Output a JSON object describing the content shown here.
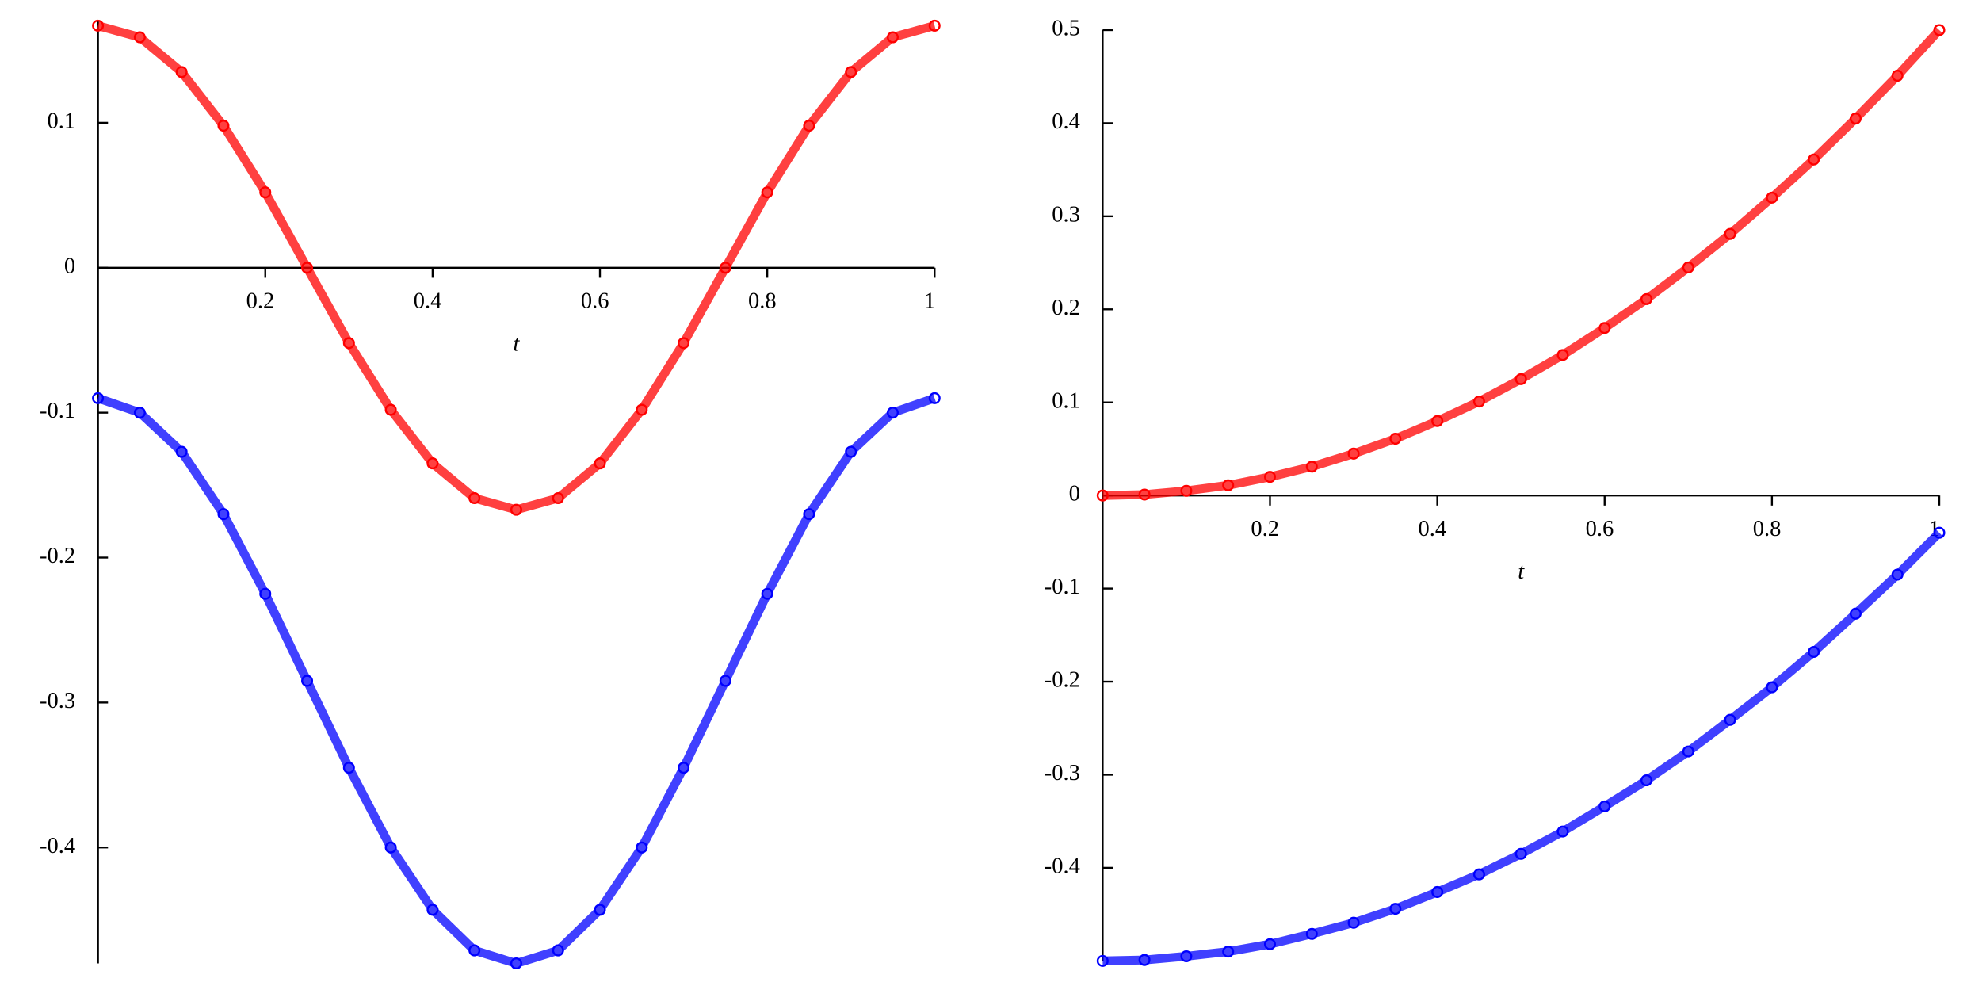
{
  "chart_data": [
    {
      "type": "line",
      "x_label": "t",
      "x": [
        0,
        0.05,
        0.1,
        0.15,
        0.2,
        0.25,
        0.3,
        0.35,
        0.4,
        0.45,
        0.5,
        0.55,
        0.6,
        0.65,
        0.7,
        0.75,
        0.8,
        0.85,
        0.9,
        0.95,
        1
      ],
      "series": [
        {
          "color": "#ff0000",
          "values": [
            0.167,
            0.159,
            0.135,
            0.098,
            0.052,
            0,
            -0.052,
            -0.098,
            -0.135,
            -0.159,
            -0.167,
            -0.159,
            -0.135,
            -0.098,
            -0.052,
            0,
            0.052,
            0.098,
            0.135,
            0.159,
            0.167
          ]
        },
        {
          "color": "#0000ff",
          "values": [
            -0.09,
            -0.1,
            -0.127,
            -0.17,
            -0.225,
            -0.285,
            -0.345,
            -0.4,
            -0.443,
            -0.471,
            -0.48,
            -0.471,
            -0.443,
            -0.4,
            -0.345,
            -0.285,
            -0.225,
            -0.17,
            -0.127,
            -0.1,
            -0.09
          ]
        }
      ],
      "xlim": [
        0,
        1
      ],
      "ylim": [
        -0.48,
        0.17
      ],
      "xticks": [
        0.2,
        0.4,
        0.6,
        0.8,
        1
      ],
      "yticks": [
        0.1,
        0,
        -0.1,
        -0.2,
        -0.3,
        -0.4
      ]
    },
    {
      "type": "line",
      "x_label": "t",
      "x": [
        0,
        0.05,
        0.1,
        0.15,
        0.2,
        0.25,
        0.3,
        0.35,
        0.4,
        0.45,
        0.5,
        0.55,
        0.6,
        0.65,
        0.7,
        0.75,
        0.8,
        0.85,
        0.9,
        0.95,
        1
      ],
      "series": [
        {
          "color": "#ff0000",
          "values": [
            0,
            0.001,
            0.005,
            0.011,
            0.02,
            0.031,
            0.045,
            0.061,
            0.08,
            0.101,
            0.125,
            0.151,
            0.18,
            0.211,
            0.245,
            0.281,
            0.32,
            0.361,
            0.405,
            0.451,
            0.5
          ]
        },
        {
          "color": "#0000ff",
          "values": [
            -0.5,
            -0.499,
            -0.495,
            -0.49,
            -0.482,
            -0.471,
            -0.459,
            -0.444,
            -0.426,
            -0.407,
            -0.385,
            -0.361,
            -0.334,
            -0.306,
            -0.275,
            -0.241,
            -0.206,
            -0.168,
            -0.127,
            -0.085,
            -0.04
          ]
        }
      ],
      "xlim": [
        0,
        1
      ],
      "ylim": [
        -0.5,
        0.5
      ],
      "xticks": [
        0.2,
        0.4,
        0.6,
        0.8,
        1
      ],
      "yticks": [
        0.5,
        0.4,
        0.3,
        0.2,
        0.1,
        0,
        -0.1,
        -0.2,
        -0.3,
        -0.4
      ]
    }
  ]
}
